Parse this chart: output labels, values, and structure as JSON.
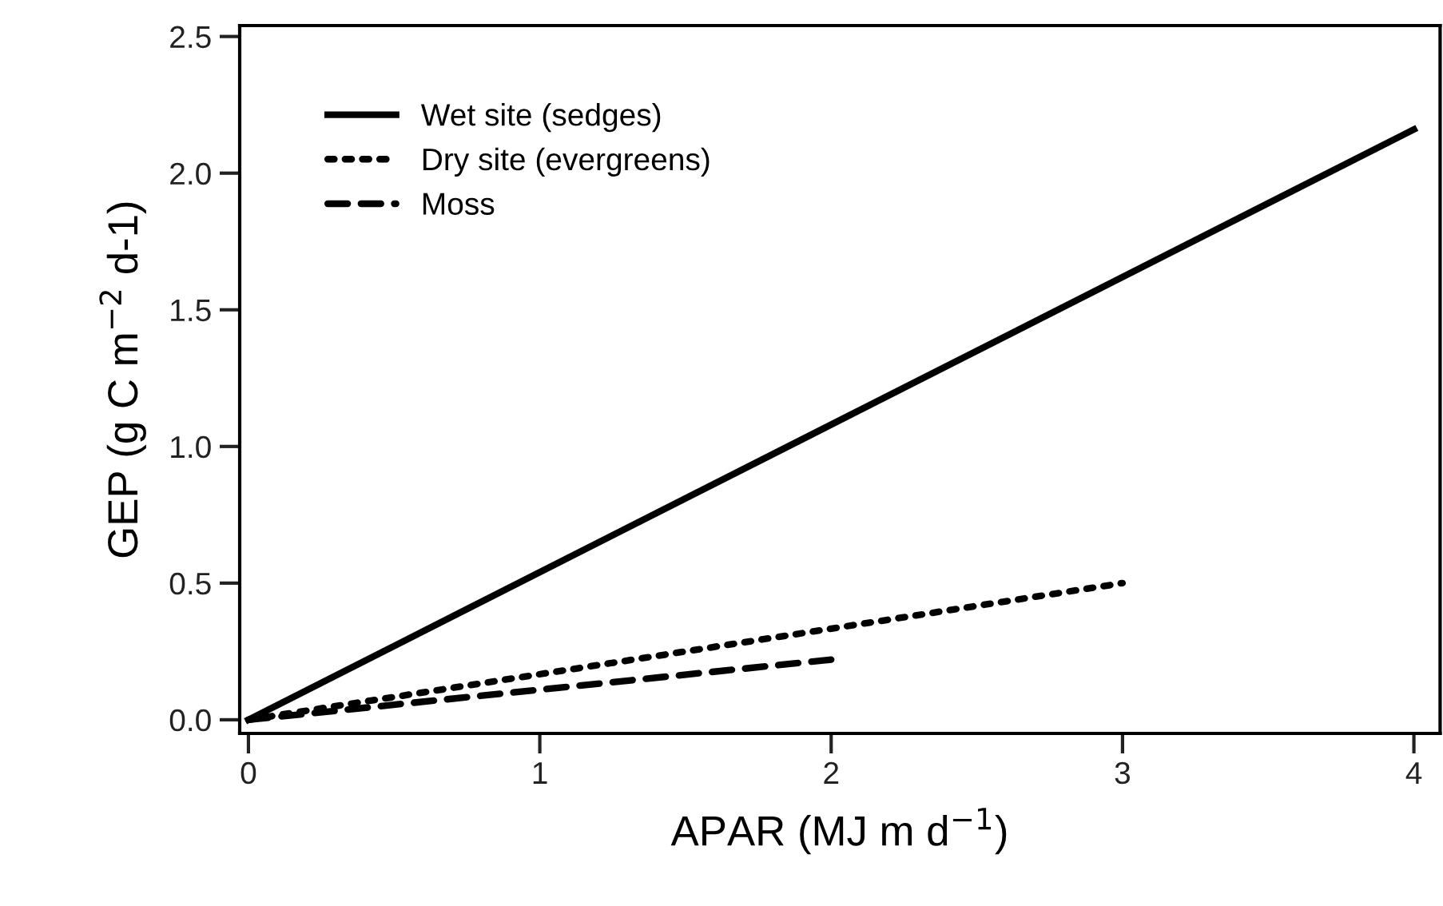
{
  "chart_data": {
    "type": "line",
    "xlabel": "APAR (MJ m d$^{−1}$)",
    "ylabel": "GEP (g C m$^{−2}$ d-1)",
    "series": [
      {
        "name": "Wet site (sedges)",
        "color": "#000000",
        "line_style": "solid",
        "x": [
          0,
          4
        ],
        "values": [
          0,
          2.16
        ]
      },
      {
        "name": "Dry site (evergreens)",
        "color": "#000000",
        "line_style": "dotted",
        "x": [
          0,
          3
        ],
        "values": [
          0,
          0.5
        ]
      },
      {
        "name": "Moss",
        "color": "#000000",
        "line_style": "dashed",
        "x": [
          0,
          2
        ],
        "values": [
          0,
          0.22
        ]
      }
    ],
    "xlim": [
      -0.03,
      4.09
    ],
    "ylim": [
      -0.05,
      2.54
    ],
    "xticks": [
      0,
      1,
      2,
      3,
      4
    ],
    "yticks": [
      {
        "value": 0,
        "label": "0.0"
      },
      {
        "value": 0.5,
        "label": "0.5"
      },
      {
        "value": 1,
        "label": "1.0"
      },
      {
        "value": 1.5,
        "label": "1.5"
      },
      {
        "value": 2,
        "label": "2.0"
      },
      {
        "value": 2.5,
        "label": "2.5"
      }
    ],
    "legend": "top left",
    "grid": false,
    "marker": "none"
  }
}
